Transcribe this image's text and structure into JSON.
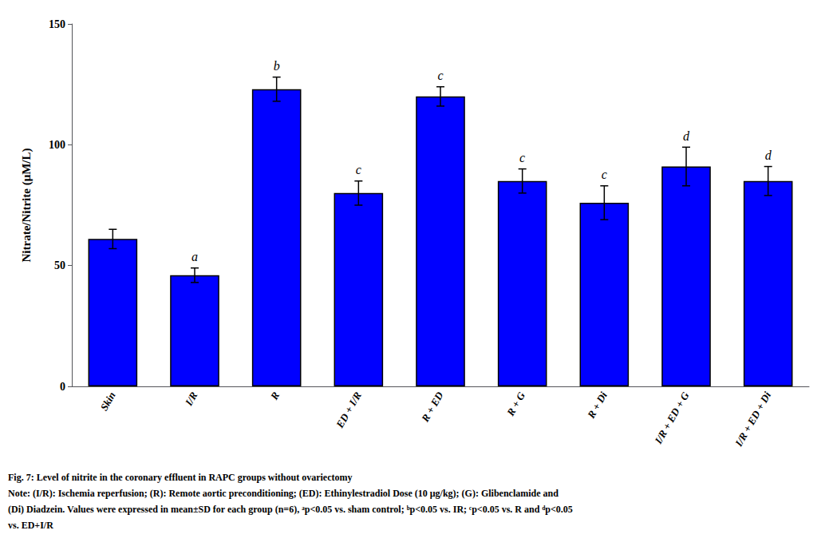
{
  "chart_data": {
    "type": "bar",
    "categories": [
      "Skin",
      "I/R",
      "R",
      "ED + I/R",
      "R + ED",
      "R + G",
      "R + Di",
      "I/R + ED + G",
      "I/R + ED + Di"
    ],
    "values": [
      61,
      46,
      123,
      80,
      120,
      85,
      76,
      91,
      85
    ],
    "errors": [
      4,
      3,
      5,
      5,
      4,
      5,
      7,
      8,
      6
    ],
    "color": "#0000FF",
    "significance": [
      null,
      "a",
      "b",
      "c",
      "c",
      "c",
      "c",
      "d",
      "d"
    ],
    "ylabel": "Nitrate/Nitrite (μM/L)",
    "ylim": [
      0,
      150
    ],
    "yticks": [
      0,
      50,
      100,
      150
    ],
    "grid": false,
    "caption_title": "Fig. 7: Level of nitrite in the coronary effluent in RAPC groups without ovariectomy",
    "caption_notes": [
      "Note: (I/R): Ischemia reperfusion; (R): Remote aortic preconditioning; (ED): Ethinylestradiol Dose (10 μg/kg); (G): Glibenclamide and",
      "(Di) Diadzein. Values were expressed in mean±SD for each group (n=6), ᵃp<0.05 vs. sham control; ᵇp<0.05 vs. IR; ᶜp<0.05 vs. R and ᵈp<0.05",
      "vs. ED+I/R"
    ]
  }
}
